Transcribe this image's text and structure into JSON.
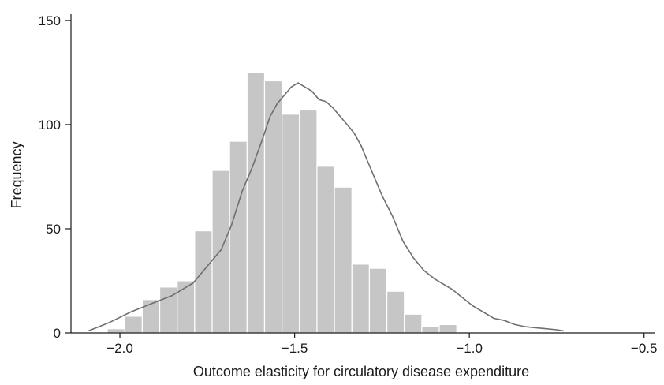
{
  "chart_data": {
    "type": "histogram",
    "xlabel": "Outcome elasticity for circulatory disease expenditure",
    "ylabel": "Frequency",
    "xlim": [
      -2.14,
      -0.47
    ],
    "ylim": [
      0,
      153
    ],
    "x_ticks": [
      {
        "value": -2.0,
        "label": "−2.0"
      },
      {
        "value": -1.5,
        "label": "−1.5"
      },
      {
        "value": -1.0,
        "label": "−1.0"
      },
      {
        "value": -0.5,
        "label": "−0.5"
      }
    ],
    "y_ticks": [
      {
        "value": 0,
        "label": "0"
      },
      {
        "value": 50,
        "label": "50"
      },
      {
        "value": 100,
        "label": "100"
      },
      {
        "value": 150,
        "label": "150"
      }
    ],
    "bins": [
      {
        "x0": -2.036,
        "x1": -1.986,
        "count": 2
      },
      {
        "x0": -1.986,
        "x1": -1.936,
        "count": 8
      },
      {
        "x0": -1.936,
        "x1": -1.886,
        "count": 16
      },
      {
        "x0": -1.886,
        "x1": -1.836,
        "count": 22
      },
      {
        "x0": -1.836,
        "x1": -1.786,
        "count": 25
      },
      {
        "x0": -1.786,
        "x1": -1.736,
        "count": 49
      },
      {
        "x0": -1.736,
        "x1": -1.686,
        "count": 78
      },
      {
        "x0": -1.686,
        "x1": -1.636,
        "count": 92
      },
      {
        "x0": -1.636,
        "x1": -1.586,
        "count": 125
      },
      {
        "x0": -1.586,
        "x1": -1.536,
        "count": 121
      },
      {
        "x0": -1.536,
        "x1": -1.486,
        "count": 105
      },
      {
        "x0": -1.486,
        "x1": -1.436,
        "count": 107
      },
      {
        "x0": -1.436,
        "x1": -1.386,
        "count": 80
      },
      {
        "x0": -1.386,
        "x1": -1.336,
        "count": 70
      },
      {
        "x0": -1.336,
        "x1": -1.286,
        "count": 33
      },
      {
        "x0": -1.286,
        "x1": -1.236,
        "count": 31
      },
      {
        "x0": -1.236,
        "x1": -1.186,
        "count": 20
      },
      {
        "x0": -1.186,
        "x1": -1.136,
        "count": 9
      },
      {
        "x0": -1.136,
        "x1": -1.086,
        "count": 3
      },
      {
        "x0": -1.086,
        "x1": -1.036,
        "count": 4
      }
    ],
    "density_curve": {
      "x": [
        -2.09,
        -2.03,
        -1.97,
        -1.91,
        -1.85,
        -1.79,
        -1.75,
        -1.71,
        -1.68,
        -1.65,
        -1.62,
        -1.59,
        -1.57,
        -1.55,
        -1.53,
        -1.51,
        -1.49,
        -1.47,
        -1.45,
        -1.43,
        -1.41,
        -1.39,
        -1.37,
        -1.35,
        -1.33,
        -1.31,
        -1.29,
        -1.27,
        -1.25,
        -1.22,
        -1.19,
        -1.16,
        -1.13,
        -1.1,
        -1.07,
        -1.05,
        -1.02,
        -0.99,
        -0.96,
        -0.93,
        -0.9,
        -0.87,
        -0.84,
        -0.81,
        -0.78,
        -0.75,
        -0.73
      ],
      "y": [
        1,
        5,
        10,
        14,
        18,
        24,
        32,
        40,
        52,
        68,
        80,
        94,
        104,
        110,
        114,
        118,
        120,
        118,
        116,
        112,
        111,
        108,
        104,
        100,
        96,
        90,
        82,
        74,
        66,
        56,
        44,
        36,
        30,
        26,
        23,
        21,
        17,
        13,
        10,
        7,
        6,
        4,
        3,
        2.5,
        2,
        1.5,
        1
      ]
    },
    "colors": {
      "bar_fill": "#c6c6c6",
      "curve": "#6f6f6f",
      "axis": "#1a1a1a"
    },
    "grid": false,
    "legend": "none"
  }
}
